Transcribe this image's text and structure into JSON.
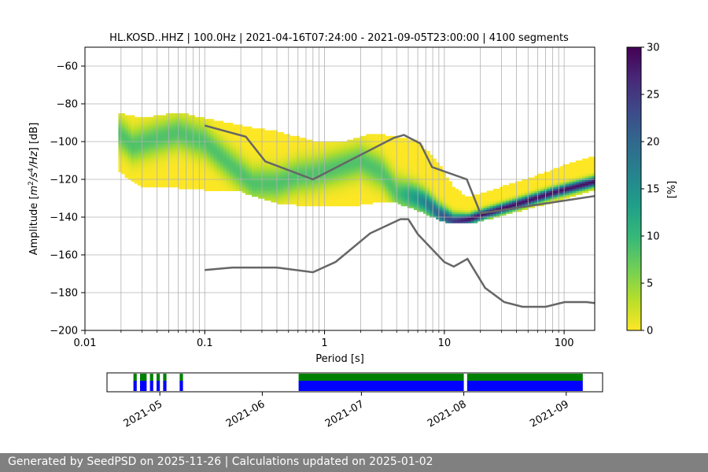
{
  "chart_data": [
    {
      "type": "heatmap",
      "title": "HL.KOSD..HHZ | 100.0Hz | 2021-04-16T07:24:00 - 2021-09-05T23:00:00 | 4100 segments",
      "xlabel": "Period [s]",
      "ylabel_prefix": "Amplitude [",
      "ylabel_math": "m",
      "ylabel_tail": "/Hz] [dB]",
      "xscale": "log",
      "xlim": [
        0.01,
        180
      ],
      "ylim": [
        -200,
        -50
      ],
      "x_ticks": [
        {
          "value": 0.01,
          "label": "0.01"
        },
        {
          "value": 0.1,
          "label": "0.1"
        },
        {
          "value": 1,
          "label": "1"
        },
        {
          "value": 10,
          "label": "10"
        },
        {
          "value": 100,
          "label": "100"
        }
      ],
      "y_ticks": [
        {
          "value": -60,
          "label": "−60"
        },
        {
          "value": -80,
          "label": "−80"
        },
        {
          "value": -100,
          "label": "−100"
        },
        {
          "value": -120,
          "label": "−120"
        },
        {
          "value": -140,
          "label": "−140"
        },
        {
          "value": -160,
          "label": "−160"
        },
        {
          "value": -180,
          "label": "−180"
        },
        {
          "value": -200,
          "label": "−200"
        }
      ],
      "grid": true,
      "colormap": "viridis_r",
      "colorbar": {
        "label": "[%]",
        "range": [
          0,
          30
        ],
        "ticks": [
          {
            "value": 0,
            "label": "0"
          },
          {
            "value": 5,
            "label": "5"
          },
          {
            "value": 10,
            "label": "10"
          },
          {
            "value": 15,
            "label": "15"
          },
          {
            "value": 20,
            "label": "20"
          },
          {
            "value": 25,
            "label": "25"
          },
          {
            "value": 30,
            "label": "30"
          }
        ],
        "colors": [
          "#fde725",
          "#b5de2b",
          "#6ece58",
          "#35b779",
          "#1f9e89",
          "#26828e",
          "#31688e",
          "#3e4989",
          "#482878",
          "#440154"
        ]
      },
      "mode_curve": {
        "x": [
          0.019,
          0.025,
          0.04,
          0.06,
          0.1,
          0.15,
          0.25,
          0.4,
          0.6,
          0.8,
          1.2,
          2.0,
          3.0,
          4.0,
          5.5,
          7.0,
          9.0,
          12.0,
          16.0,
          22.0,
          40.0,
          80.0,
          180.0
        ],
        "y": [
          -95,
          -102,
          -98,
          -95,
          -100,
          -110,
          -122,
          -122,
          -118,
          -117,
          -114,
          -110,
          -116,
          -127,
          -129,
          -132,
          -138,
          -142,
          -141,
          -138,
          -133,
          -127,
          -121
        ]
      },
      "density_band": {
        "x": [
          0.019,
          0.03,
          0.06,
          0.1,
          0.2,
          0.4,
          0.8,
          1.5,
          2.5,
          4.0,
          6.0,
          9.0,
          12.0,
          16.0,
          25.0,
          50.0,
          100.0,
          180.0
        ],
        "upper": [
          -85,
          -88,
          -85,
          -88,
          -92,
          -95,
          -100,
          -100,
          -96,
          -98,
          -100,
          -112,
          -125,
          -130,
          -126,
          -120,
          -113,
          -108
        ],
        "lower": [
          -115,
          -124,
          -124,
          -125,
          -126,
          -132,
          -134,
          -134,
          -132,
          -132,
          -136,
          -141,
          -143,
          -143,
          -140,
          -135,
          -130,
          -125
        ]
      },
      "nhnm": {
        "x": [
          0.1,
          0.22,
          0.32,
          0.8,
          3.8,
          4.6,
          6.3,
          7.9,
          15.4,
          20.0,
          354.8
        ],
        "y": [
          -91.5,
          -97.4,
          -110.5,
          -120.0,
          -98.0,
          -96.5,
          -101.0,
          -113.5,
          -120.0,
          -138.0,
          -126.0
        ]
      },
      "nlnm": {
        "x": [
          0.1,
          0.17,
          0.4,
          0.8,
          1.24,
          2.4,
          4.3,
          5.0,
          6.0,
          10.0,
          12.0,
          15.6,
          21.9,
          31.6,
          45.0,
          70.0,
          101.0,
          154.0,
          180.0
        ],
        "y": [
          -168.0,
          -166.7,
          -166.7,
          -169.2,
          -163.7,
          -148.6,
          -141.1,
          -141.1,
          -149.0,
          -163.8,
          -166.2,
          -162.1,
          -177.5,
          -185.0,
          -187.5,
          -187.5,
          -185.0,
          -185.0,
          -185.5
        ]
      }
    },
    {
      "type": "timeline",
      "x_ticks": [
        {
          "value": "2021-05-01",
          "label": "2021-05"
        },
        {
          "value": "2021-06-01",
          "label": "2021-06"
        },
        {
          "value": "2021-07-01",
          "label": "2021-07"
        },
        {
          "value": "2021-08-01",
          "label": "2021-08"
        },
        {
          "value": "2021-09-01",
          "label": "2021-09"
        }
      ],
      "xlim": [
        "2021-04-15",
        "2021-09-12"
      ],
      "colors": {
        "data": "#0000ff",
        "psd": "#008000"
      },
      "segments": [
        {
          "start": "2021-04-23",
          "end": "2021-04-24"
        },
        {
          "start": "2021-04-25",
          "end": "2021-04-27"
        },
        {
          "start": "2021-04-28",
          "end": "2021-04-29"
        },
        {
          "start": "2021-04-30",
          "end": "2021-05-01"
        },
        {
          "start": "2021-05-02",
          "end": "2021-05-03"
        },
        {
          "start": "2021-05-07",
          "end": "2021-05-08"
        },
        {
          "start": "2021-06-12",
          "end": "2021-08-01"
        },
        {
          "start": "2021-08-02",
          "end": "2021-09-06"
        }
      ]
    }
  ],
  "footer": {
    "text": "Generated by SeedPSD on 2025-11-26 | Calculations updated on 2025-01-02"
  }
}
